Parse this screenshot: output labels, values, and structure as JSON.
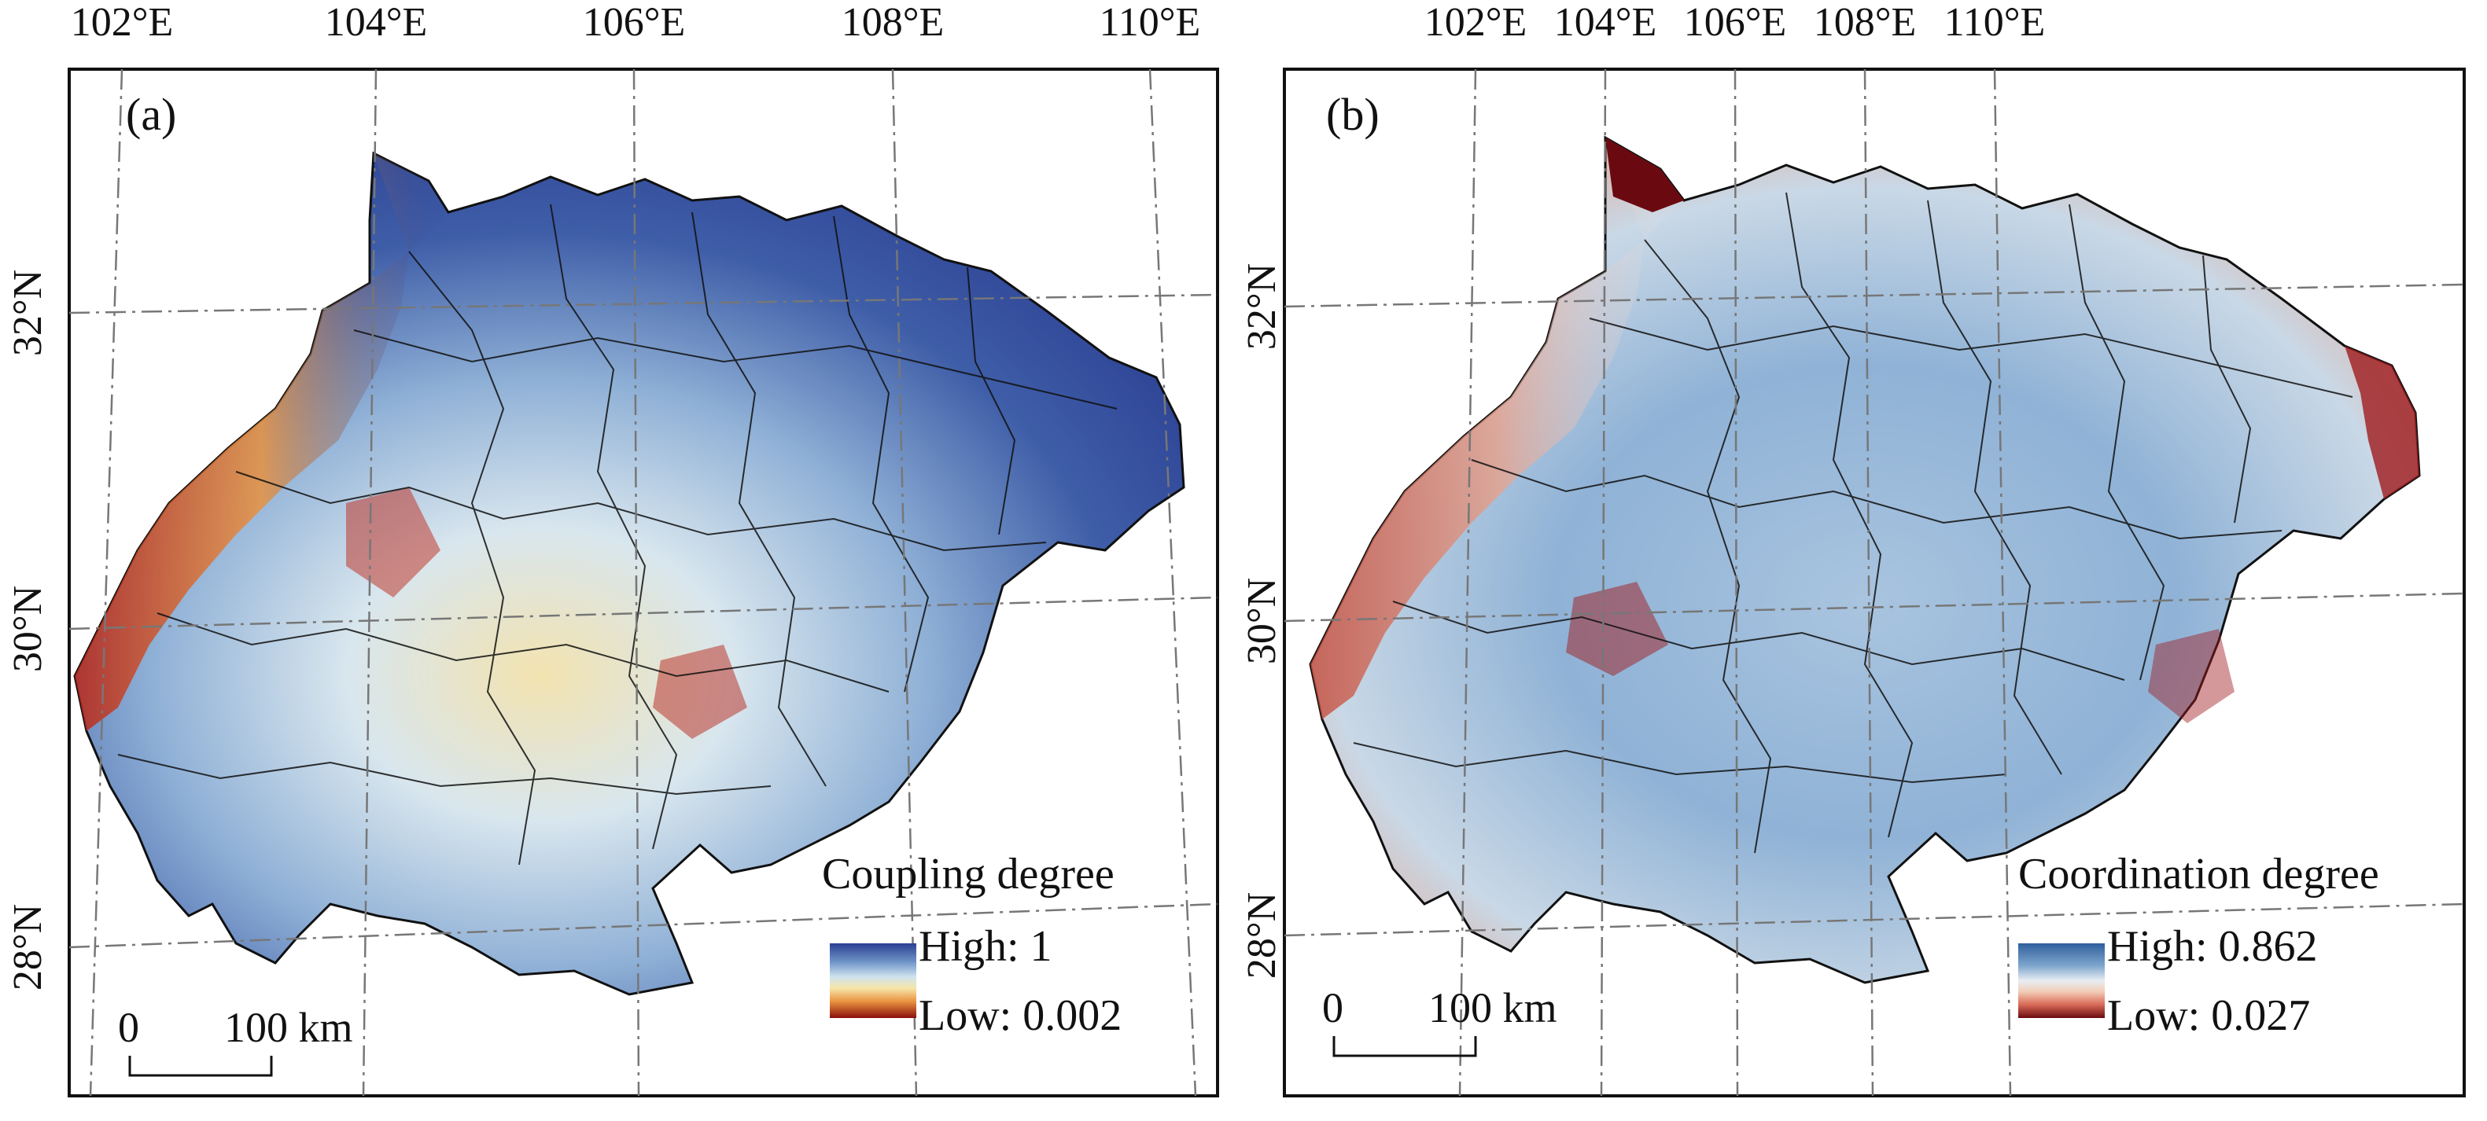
{
  "panels": [
    {
      "label": "(a)",
      "lon_labels": [
        "102°E",
        "104°E",
        "106°E",
        "108°E",
        "110°E"
      ],
      "lat_labels": [
        "32°N",
        "30°N",
        "28°N"
      ],
      "legend": {
        "title": "Coupling degree",
        "high": "High: 1",
        "low": "Low: 0.002",
        "colors": [
          "#2b3f92",
          "#6f95c8",
          "#cfe3ee",
          "#f6e6a9",
          "#e9923f",
          "#b8261b",
          "#8a0f0c"
        ]
      },
      "scalebar": {
        "zero": "0",
        "end": "100 km"
      }
    },
    {
      "label": "(b)",
      "lon_labels": [
        "102°E",
        "104°E",
        "106°E",
        "108°E",
        "110°E"
      ],
      "lat_labels": [
        "32°N",
        "30°N",
        "28°N"
      ],
      "legend": {
        "title": "Coordination degree",
        "high": "High: 0.862",
        "low": "Low: 0.027",
        "colors": [
          "#2f5f9c",
          "#7ea6cd",
          "#e8eef3",
          "#f2cbb5",
          "#d96b58",
          "#9f1b1e",
          "#6a0a10"
        ]
      },
      "scalebar": {
        "zero": "0",
        "end": "100 km"
      }
    }
  ]
}
